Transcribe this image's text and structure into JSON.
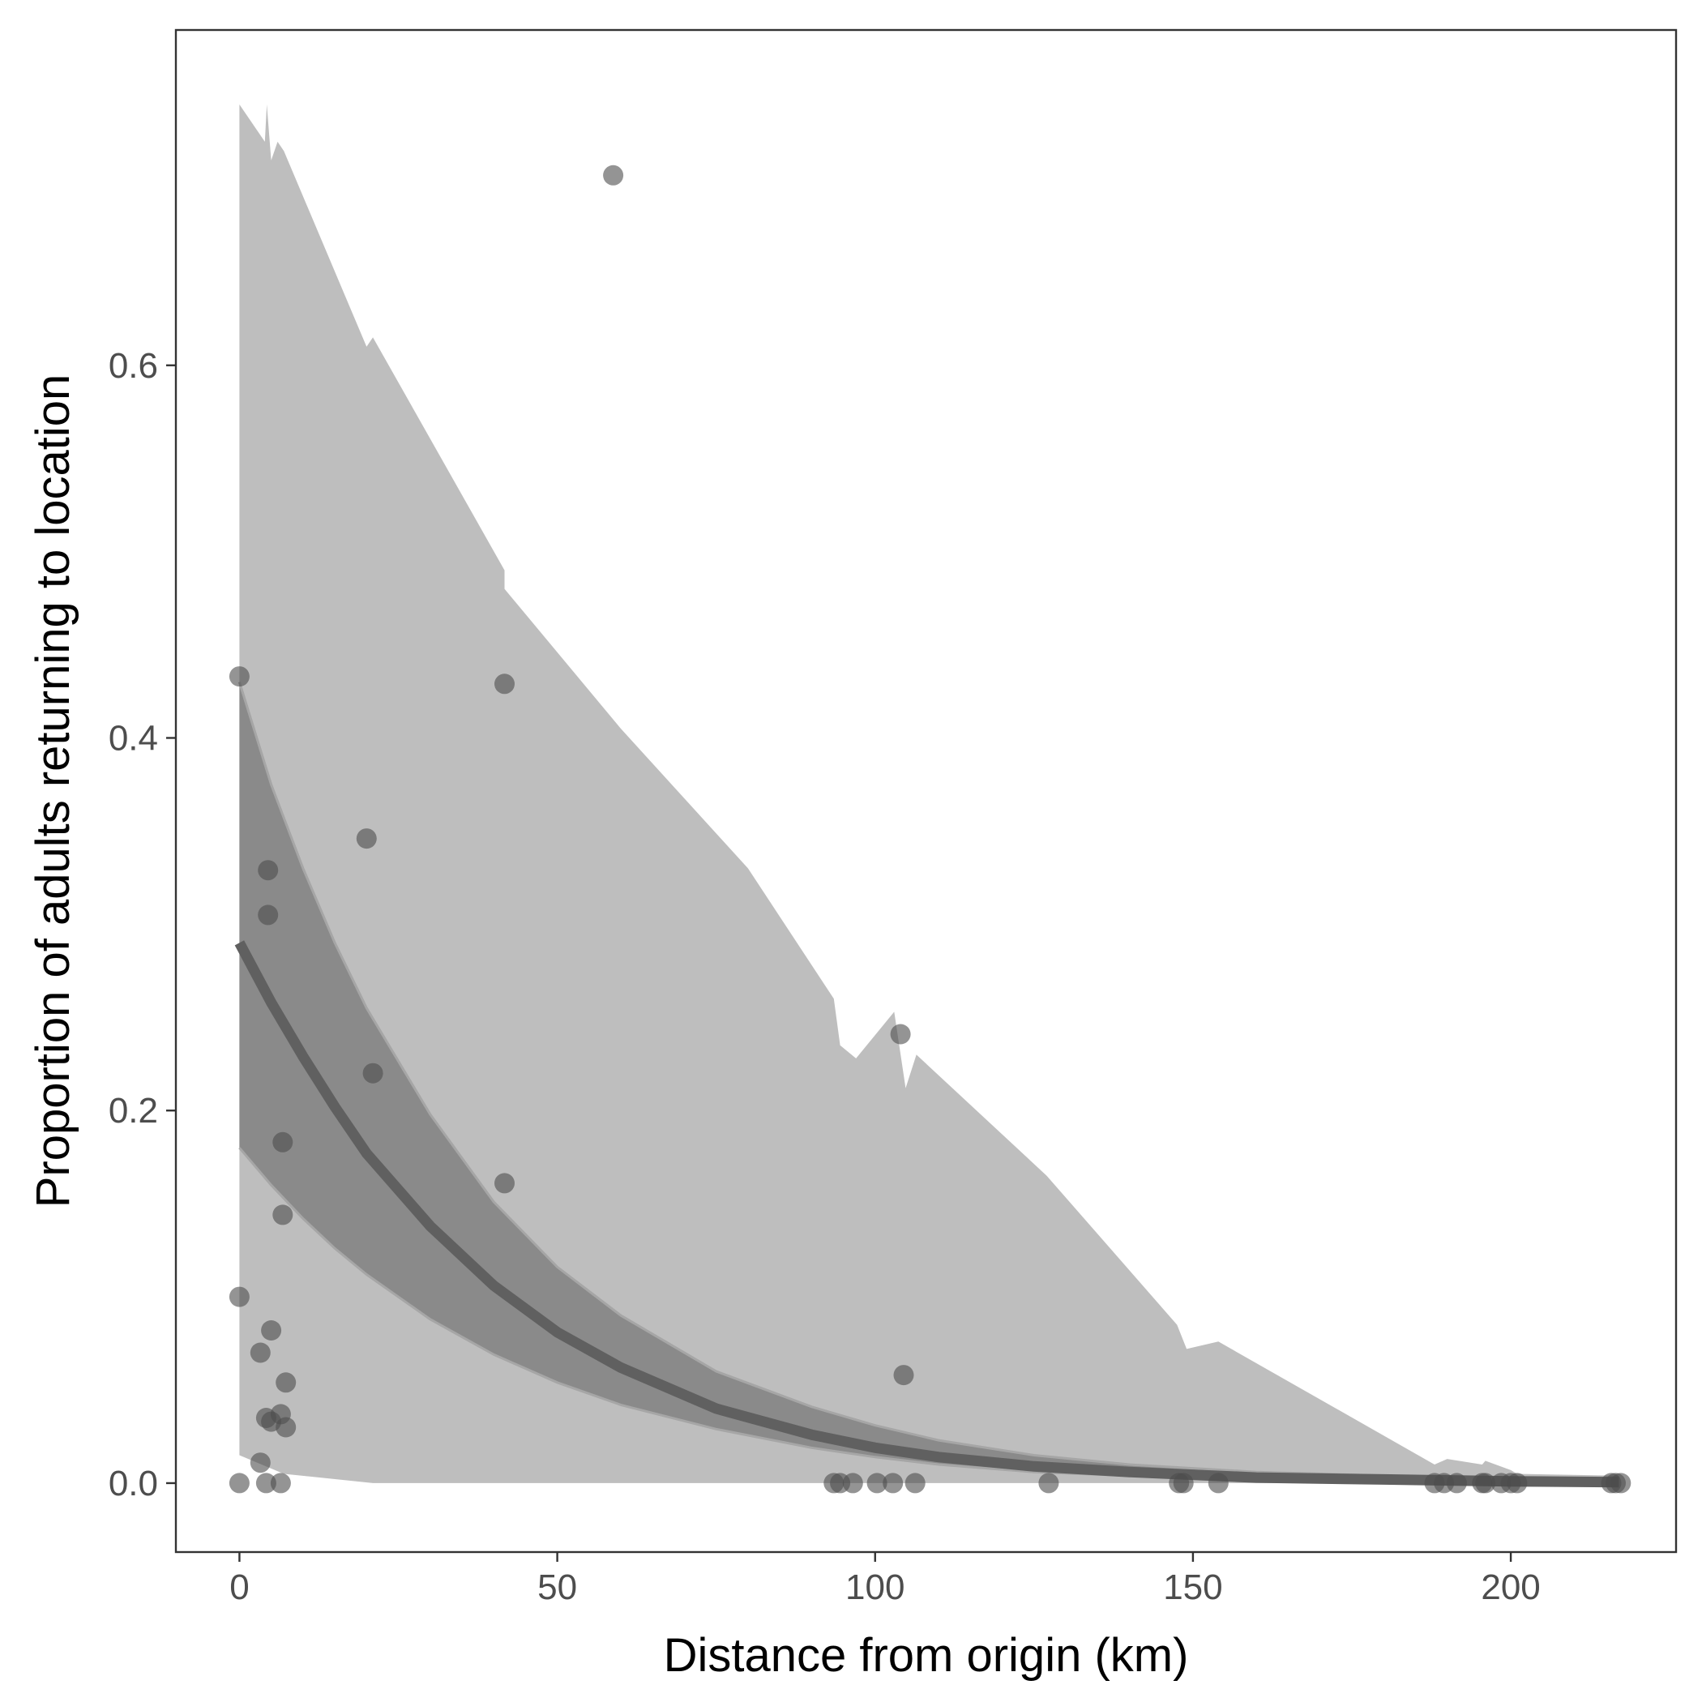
{
  "chart_data": {
    "type": "scatter",
    "xlabel": "Distance from origin (km)",
    "ylabel": "Proportion of adults returning to location",
    "xlim": [
      -10,
      226
    ],
    "ylim": [
      -0.037,
      0.78
    ],
    "xticks": [
      0,
      50,
      100,
      150,
      200
    ],
    "xtick_labels": [
      "0",
      "50",
      "100",
      "150",
      "200"
    ],
    "yticks": [
      0.0,
      0.2,
      0.4,
      0.6
    ],
    "ytick_labels": [
      "0.0",
      "0.2",
      "0.4",
      "0.6"
    ],
    "grid": false,
    "legend": "none",
    "colors": {
      "points": "#4d4d4d",
      "prediction_band": "#bebebe",
      "confidence_band": "#8a8a8a",
      "fit_line": "#606060",
      "panel_border": "#333333"
    },
    "points": [
      {
        "x": 0,
        "y": 0.433
      },
      {
        "x": 0,
        "y": 0.1
      },
      {
        "x": 0,
        "y": 0.0
      },
      {
        "x": 3.3,
        "y": 0.07
      },
      {
        "x": 3.3,
        "y": 0.011
      },
      {
        "x": 4.2,
        "y": 0.035
      },
      {
        "x": 4.2,
        "y": 0.0
      },
      {
        "x": 4.5,
        "y": 0.329
      },
      {
        "x": 4.5,
        "y": 0.305
      },
      {
        "x": 5,
        "y": 0.082
      },
      {
        "x": 5,
        "y": 0.033
      },
      {
        "x": 6.5,
        "y": 0.037
      },
      {
        "x": 6.5,
        "y": 0.0
      },
      {
        "x": 6.8,
        "y": 0.183
      },
      {
        "x": 6.8,
        "y": 0.144
      },
      {
        "x": 7.3,
        "y": 0.054
      },
      {
        "x": 7.3,
        "y": 0.03
      },
      {
        "x": 20,
        "y": 0.346
      },
      {
        "x": 21,
        "y": 0.22
      },
      {
        "x": 41.7,
        "y": 0.429
      },
      {
        "x": 41.7,
        "y": 0.161
      },
      {
        "x": 58.8,
        "y": 0.702
      },
      {
        "x": 93.5,
        "y": 0.0
      },
      {
        "x": 94.5,
        "y": 0.0
      },
      {
        "x": 96.5,
        "y": 0.0
      },
      {
        "x": 100.3,
        "y": 0.0
      },
      {
        "x": 102.8,
        "y": 0.0
      },
      {
        "x": 104,
        "y": 0.241
      },
      {
        "x": 104.5,
        "y": 0.058
      },
      {
        "x": 106.3,
        "y": 0.0
      },
      {
        "x": 127.3,
        "y": 0.0
      },
      {
        "x": 147.8,
        "y": 0.0
      },
      {
        "x": 148.5,
        "y": 0.0
      },
      {
        "x": 154,
        "y": 0.0
      },
      {
        "x": 188,
        "y": 0.0
      },
      {
        "x": 189.5,
        "y": 0.0
      },
      {
        "x": 191.5,
        "y": 0.0
      },
      {
        "x": 195.5,
        "y": 0.0
      },
      {
        "x": 196,
        "y": 0.0
      },
      {
        "x": 198.5,
        "y": 0.0
      },
      {
        "x": 200,
        "y": 0.0
      },
      {
        "x": 201,
        "y": 0.0
      },
      {
        "x": 215.8,
        "y": 0.0
      },
      {
        "x": 216.5,
        "y": 0.0
      },
      {
        "x": 217.3,
        "y": 0.0
      }
    ],
    "fit_curve": {
      "x": [
        0,
        5,
        10,
        15,
        20,
        30,
        40,
        50,
        60,
        75,
        90,
        100,
        110,
        125,
        140,
        160,
        180,
        200,
        217
      ],
      "y": [
        0.29,
        0.258,
        0.229,
        0.202,
        0.177,
        0.138,
        0.106,
        0.081,
        0.062,
        0.04,
        0.026,
        0.019,
        0.014,
        0.009,
        0.006,
        0.003,
        0.002,
        0.001,
        0.0005
      ]
    },
    "confidence_band": {
      "x": [
        0,
        5,
        10,
        15,
        20,
        30,
        40,
        50,
        60,
        75,
        90,
        100,
        110,
        125,
        140,
        160,
        180,
        200,
        217
      ],
      "upper": [
        0.43,
        0.375,
        0.33,
        0.29,
        0.255,
        0.198,
        0.151,
        0.116,
        0.09,
        0.06,
        0.041,
        0.031,
        0.023,
        0.015,
        0.01,
        0.006,
        0.004,
        0.002,
        0.001
      ],
      "lower": [
        0.18,
        0.16,
        0.142,
        0.126,
        0.112,
        0.088,
        0.069,
        0.054,
        0.042,
        0.029,
        0.019,
        0.014,
        0.01,
        0.006,
        0.004,
        0.002,
        0.001,
        0.0005,
        0.0003
      ]
    },
    "prediction_band": {
      "upper": [
        [
          0,
          0.74
        ],
        [
          4,
          0.72
        ],
        [
          4.3,
          0.74
        ],
        [
          5,
          0.71
        ],
        [
          6,
          0.72
        ],
        [
          7,
          0.715
        ],
        [
          20,
          0.61
        ],
        [
          21,
          0.615
        ],
        [
          41.7,
          0.49
        ],
        [
          41.7,
          0.48
        ],
        [
          60,
          0.405
        ],
        [
          80,
          0.33
        ],
        [
          93.5,
          0.26
        ],
        [
          94.5,
          0.235
        ],
        [
          97,
          0.228
        ],
        [
          103,
          0.253
        ],
        [
          104.8,
          0.212
        ],
        [
          106.5,
          0.23
        ],
        [
          127,
          0.165
        ],
        [
          147.5,
          0.085
        ],
        [
          149,
          0.072
        ],
        [
          154,
          0.076
        ],
        [
          188,
          0.01
        ],
        [
          190,
          0.013
        ],
        [
          195.5,
          0.01
        ],
        [
          196,
          0.012
        ],
        [
          200,
          0.007
        ],
        [
          201,
          0.005
        ],
        [
          217,
          0.004
        ]
      ],
      "lower": [
        [
          217,
          0.0
        ],
        [
          200,
          0.0
        ],
        [
          150,
          0.0
        ],
        [
          100,
          0.0
        ],
        [
          42,
          0.0
        ],
        [
          21,
          0.0
        ],
        [
          7,
          0.005
        ],
        [
          0,
          0.015
        ]
      ]
    }
  }
}
